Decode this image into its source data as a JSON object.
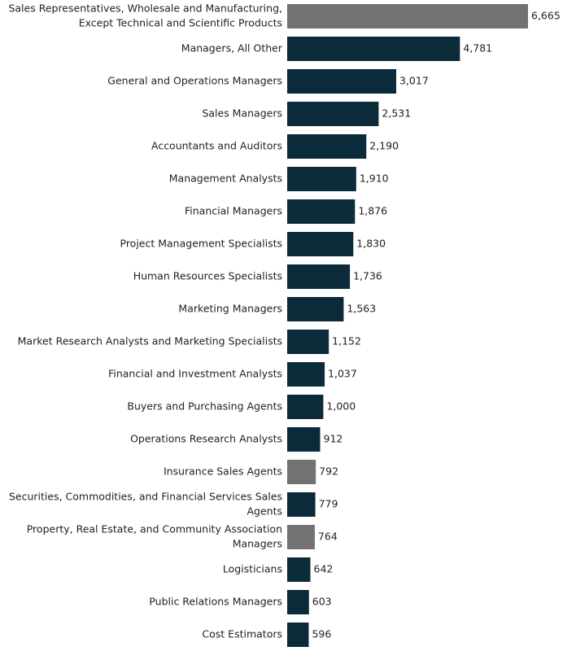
{
  "chart_data": {
    "type": "bar",
    "orientation": "horizontal",
    "categories": [
      "Sales Representatives, Wholesale and Manufacturing, Except Technical and Scientific Products",
      "Managers, All Other",
      "General and Operations Managers",
      "Sales Managers",
      "Accountants and Auditors",
      "Management Analysts",
      "Financial Managers",
      "Project Management Specialists",
      "Human Resources Specialists",
      "Marketing Managers",
      "Market Research Analysts and Marketing Specialists",
      "Financial and Investment Analysts",
      "Buyers and Purchasing Agents",
      "Operations Research Analysts",
      "Insurance Sales Agents",
      "Securities, Commodities, and Financial Services Sales Agents",
      "Property, Real Estate, and Community Association Managers",
      "Logisticians",
      "Public Relations Managers",
      "Cost Estimators"
    ],
    "category_lines": [
      [
        "Sales Representatives, Wholesale and Manufacturing,",
        "Except Technical and Scientific Products"
      ],
      [
        "Managers, All Other"
      ],
      [
        "General and Operations Managers"
      ],
      [
        "Sales Managers"
      ],
      [
        "Accountants and Auditors"
      ],
      [
        "Management Analysts"
      ],
      [
        "Financial Managers"
      ],
      [
        "Project Management Specialists"
      ],
      [
        "Human Resources Specialists"
      ],
      [
        "Marketing Managers"
      ],
      [
        "Market Research Analysts and Marketing Specialists"
      ],
      [
        "Financial and Investment Analysts"
      ],
      [
        "Buyers and Purchasing Agents"
      ],
      [
        "Operations Research Analysts"
      ],
      [
        "Insurance Sales Agents"
      ],
      [
        "Securities, Commodities, and Financial Services Sales",
        "Agents"
      ],
      [
        "Property, Real Estate, and Community Association",
        "Managers"
      ],
      [
        "Logisticians"
      ],
      [
        "Public Relations Managers"
      ],
      [
        "Cost Estimators"
      ]
    ],
    "values": [
      6665,
      4781,
      3017,
      2531,
      2190,
      1910,
      1876,
      1830,
      1736,
      1563,
      1152,
      1037,
      1000,
      912,
      792,
      779,
      764,
      642,
      603,
      596
    ],
    "value_labels": [
      "6,665",
      "4,781",
      "3,017",
      "2,531",
      "2,190",
      "1,910",
      "1,876",
      "1,830",
      "1,736",
      "1,563",
      "1,152",
      "1,037",
      "1,000",
      "912",
      "792",
      "779",
      "764",
      "642",
      "603",
      "596"
    ],
    "highlight": [
      true,
      false,
      false,
      false,
      false,
      false,
      false,
      false,
      false,
      false,
      false,
      false,
      false,
      false,
      true,
      false,
      true,
      false,
      false,
      false
    ],
    "colors": {
      "default": "#0b2a3a",
      "highlight": "#727272"
    },
    "title": "",
    "xlabel": "",
    "ylabel": "",
    "xlim": [
      0,
      6665
    ],
    "grid": false,
    "legend": "none"
  }
}
